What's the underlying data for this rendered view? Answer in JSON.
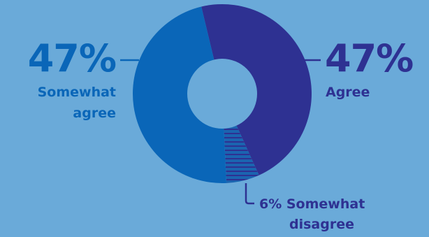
{
  "chart_data": {
    "type": "pie",
    "donut": true,
    "slices": [
      {
        "key": "agree",
        "label": "Agree",
        "pct_text": "47%",
        "value": 47,
        "color": "#2e3192"
      },
      {
        "key": "somewhat_disagree",
        "label": "Somewhat disagree",
        "pct_text": "6%",
        "value": 6,
        "color": "#1b64b0",
        "pattern": "horizontal-stripes"
      },
      {
        "key": "somewhat_agree",
        "label": "Somewhat agree",
        "pct_text": "47%",
        "value": 47,
        "color": "#0a66b8"
      }
    ],
    "labels": {
      "left_pct": "47%",
      "left_line1": "Somewhat",
      "left_line2": "agree",
      "right_pct": "47%",
      "right_line1": "Agree",
      "bottom_line1": "6% Somewhat",
      "bottom_line2": "disagree"
    },
    "colors": {
      "background": "#6aaad9",
      "somewhat_agree_text": "#0a66b8",
      "agree_text": "#2e3192",
      "disagree_text": "#2e3192",
      "leader_line_left": "#0a66b8",
      "leader_line_right": "#2e3192"
    }
  }
}
